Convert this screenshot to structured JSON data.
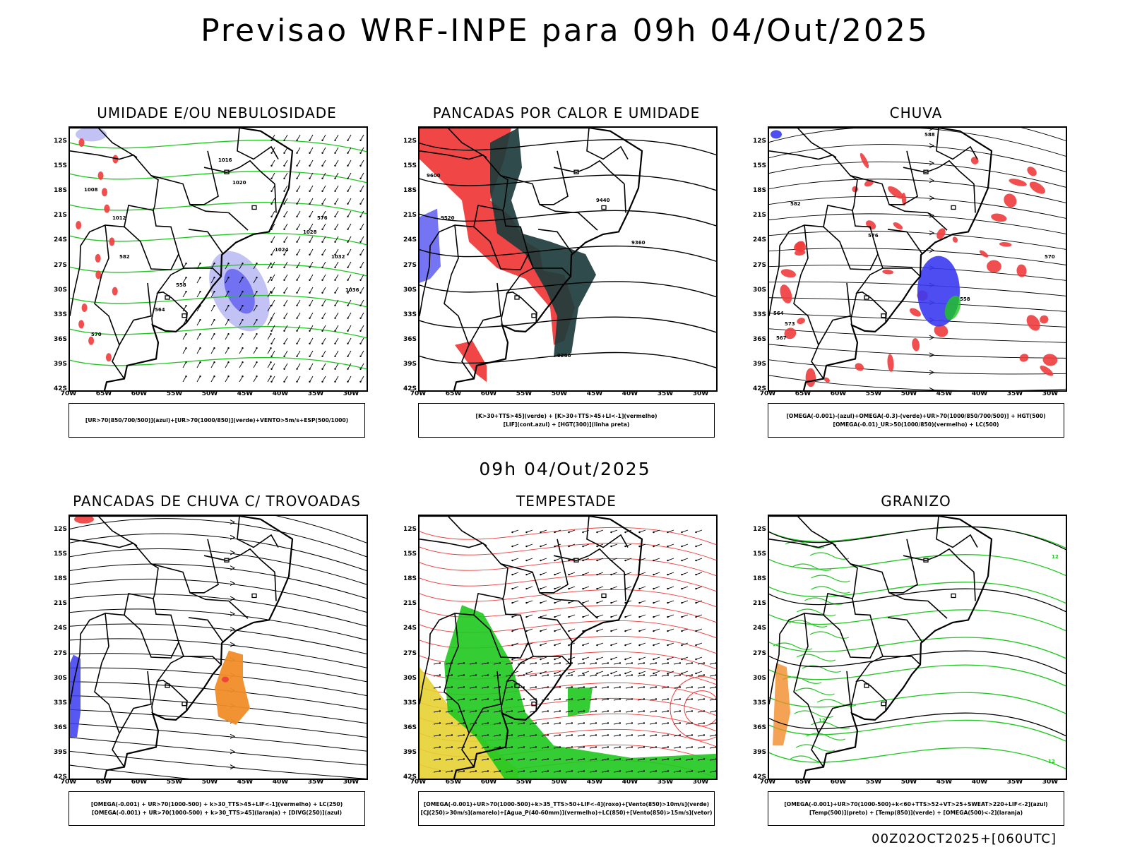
{
  "header": {
    "title": "Previsao WRF-INPE  para 09h 04/Out/2025",
    "mid_title": "09h 04/Out/2025",
    "footer": "00Z02OCT2025+[060UTC]"
  },
  "axes": {
    "lat_labels": [
      "12S",
      "15S",
      "18S",
      "21S",
      "24S",
      "27S",
      "30S",
      "33S",
      "36S",
      "39S",
      "42S"
    ],
    "lon_labels": [
      "70W",
      "65W",
      "60W",
      "55W",
      "50W",
      "45W",
      "40W",
      "35W",
      "30W"
    ]
  },
  "panels": [
    {
      "title": "UMIDADE E/OU NEBULOSIDADE",
      "legend": [
        "[UR>70(850/700/500)](azul)+[UR>70(1000/850)](verde)+VENTO>5m/s+ESP(500/1000)"
      ],
      "contour_labels": [
        "1008",
        "1012",
        "1016",
        "1020",
        "1024",
        "1028",
        "1032",
        "1036",
        "570",
        "576",
        "582",
        "564",
        "558"
      ]
    },
    {
      "title": "PANCADAS POR CALOR E UMIDADE",
      "legend": [
        "[K>30+TTS>45](verde) + [K>30+TTS>45+LI<-1](vermelho)",
        "[LIF](cont.azul) + [HGT(300)](linha preta)"
      ],
      "contour_labels": [
        "9600",
        "9520",
        "9440",
        "9360",
        "9280"
      ]
    },
    {
      "title": "CHUVA",
      "legend": [
        "[OMEGA(-0.001)-(azul)+OMEGA(-0.3)-(verde)+UR>70(1000/850/700/500)] + HGT(500)",
        "[OMEGA(-0.01)_UR>50(1000/850)(vermelho) + LC(500)"
      ],
      "contour_labels": [
        "588",
        "582",
        "576",
        "570",
        "564",
        "558",
        "573",
        "567"
      ]
    },
    {
      "title": "PANCADAS DE CHUVA C/ TROVOADAS",
      "legend": [
        "[OMEGA(-0.001) + UR>70(1000-500) + k>30_TTS>45+LIF<-1](vermelho) + LC(250)",
        "[OMEGA(-0.001) + UR>70(1000-500) + k>30_TTS>45](laranja) + [DIVG(250)](azul)"
      ],
      "contour_labels": []
    },
    {
      "title": "TEMPESTADE",
      "legend": [
        "[OMEGA(-0.001)+UR>70(1000-500)+k>35_TTS>50+LIF<-4](roxo)+[Vento(850)>10m/s](verde)",
        "[CJ(250)>30m/s](amarelo)+[Agua_P(40-60mm)](vermelho)+LC(850)+[Vento(850)>15m/s](vetor)"
      ],
      "contour_labels": []
    },
    {
      "title": "GRANIZO",
      "legend": [
        "[OMEGA(-0.001)+UR>70(1000-500)+k<60+TTS>52+VT>25+SWEAT>220+LIF<-2](azul)",
        "[Temp(500)](preto) + [Temp(850)](verde) + [OMEGA(500)<-2](laranja)"
      ],
      "contour_labels": [
        "12",
        "12",
        "12"
      ]
    }
  ],
  "colors": {
    "blue": "#3a3af0",
    "light_blue": "#a8a8f0",
    "green": "#1ec81e",
    "red": "#f03c3c",
    "dark_teal": "#1e3c3c",
    "orange": "#f08c28",
    "yellow": "#e6d232"
  }
}
